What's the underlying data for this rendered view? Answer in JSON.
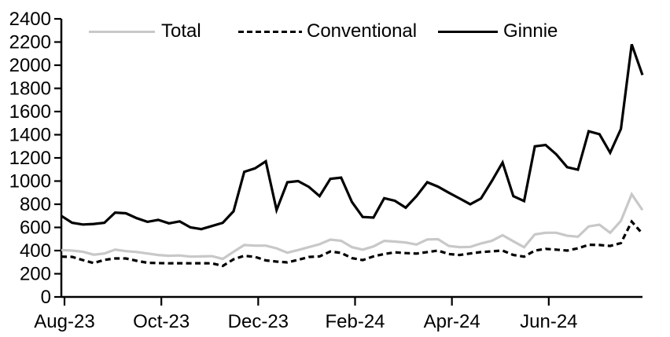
{
  "chart_data": {
    "type": "line",
    "title": "",
    "x_axis": {
      "tick_labels": [
        "Aug-23",
        "Oct-23",
        "Dec-23",
        "Feb-24",
        "Apr-24",
        "Jun-24"
      ],
      "tick_month_offsets": [
        0,
        2,
        4,
        6,
        8,
        10
      ],
      "range_note": "weekly observations from Aug-23 through early Aug-24"
    },
    "y_axis": {
      "min": 0,
      "max": 2400,
      "tick_step": 200,
      "tick_labels": [
        "0",
        "200",
        "400",
        "600",
        "800",
        "1000",
        "1200",
        "1400",
        "1600",
        "1800",
        "2000",
        "2200",
        "2400"
      ]
    },
    "grid": false,
    "legend_position": "top",
    "series": [
      {
        "name": "Total",
        "color": "#c8c8c8",
        "style": "solid",
        "values": [
          405,
          400,
          390,
          365,
          375,
          408,
          395,
          388,
          375,
          362,
          355,
          358,
          348,
          350,
          352,
          328,
          390,
          448,
          443,
          443,
          420,
          382,
          405,
          430,
          455,
          495,
          485,
          430,
          408,
          436,
          484,
          478,
          470,
          452,
          496,
          498,
          440,
          430,
          432,
          462,
          484,
          533,
          480,
          429,
          540,
          554,
          554,
          528,
          519,
          609,
          623,
          554,
          657,
          886,
          750
        ]
      },
      {
        "name": "Conventional",
        "color": "#000000",
        "style": "dashed",
        "values": [
          348,
          346,
          318,
          292,
          320,
          332,
          332,
          312,
          295,
          292,
          290,
          291,
          290,
          291,
          290,
          268,
          325,
          355,
          346,
          315,
          305,
          298,
          320,
          345,
          350,
          392,
          380,
          335,
          318,
          350,
          370,
          385,
          378,
          374,
          387,
          400,
          370,
          362,
          375,
          387,
          394,
          400,
          362,
          348,
          400,
          415,
          408,
          400,
          420,
          450,
          448,
          440,
          465,
          650,
          545
        ]
      },
      {
        "name": "Ginnie",
        "color": "#000000",
        "style": "solid",
        "values": [
          700,
          640,
          625,
          630,
          640,
          728,
          722,
          680,
          648,
          665,
          635,
          652,
          600,
          585,
          612,
          640,
          740,
          1080,
          1110,
          1170,
          750,
          990,
          1000,
          950,
          870,
          1020,
          1030,
          820,
          690,
          685,
          852,
          830,
          770,
          870,
          990,
          952,
          900,
          850,
          800,
          850,
          1000,
          1160,
          870,
          828,
          1300,
          1312,
          1230,
          1120,
          1098,
          1430,
          1405,
          1245,
          1450,
          2180,
          1915
        ]
      }
    ],
    "axis_color": "#000000",
    "background_color": "#ffffff"
  }
}
